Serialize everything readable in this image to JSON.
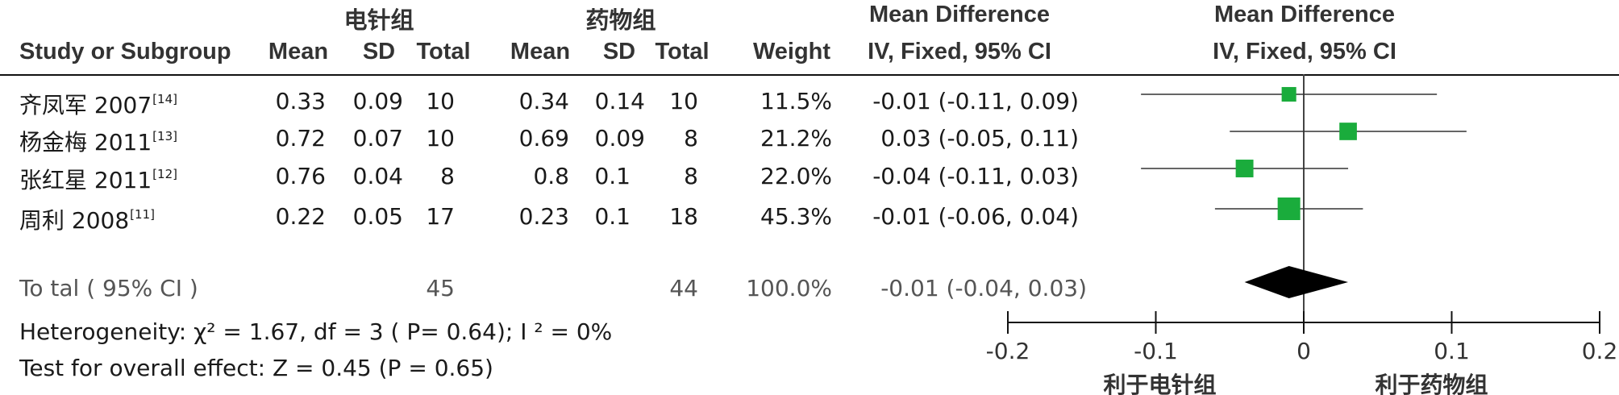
{
  "groups": {
    "experimental": "电针组",
    "control": "药物组"
  },
  "headers": {
    "study": "Study or Subgroup",
    "mean": "Mean",
    "sd": "SD",
    "total": "Total",
    "weight": "Weight",
    "md_title": "Mean Difference",
    "md_method": "IV, Fixed, 95% CI"
  },
  "studies": [
    {
      "name": "齐凤军 2007",
      "ref": "[14]",
      "e_mean": "0.33",
      "e_sd": "0.09",
      "e_total": "10",
      "c_mean": "0.34",
      "c_sd": "0.14",
      "c_total": "10",
      "weight": "11.5%",
      "ci_text": "-0.01 (-0.11, 0.09)"
    },
    {
      "name": "杨金梅 2011",
      "ref": "[13]",
      "e_mean": "0.72",
      "e_sd": "0.07",
      "e_total": "10",
      "c_mean": "0.69",
      "c_sd": "0.09",
      "c_total": "8",
      "weight": "21.2%",
      "ci_text": "0.03 (-0.05, 0.11)"
    },
    {
      "name": "张红星 2011",
      "ref": "[12]",
      "e_mean": "0.76",
      "e_sd": "0.04",
      "e_total": "8",
      "c_mean": "0.8",
      "c_sd": "0.1",
      "c_total": "8",
      "weight": "22.0%",
      "ci_text": "-0.04 (-0.11, 0.03)"
    },
    {
      "name": "周利 2008",
      "ref": "[11]",
      "e_mean": "0.22",
      "e_sd": "0.05",
      "e_total": "17",
      "c_mean": "0.23",
      "c_sd": "0.1",
      "c_total": "18",
      "weight": "45.3%",
      "ci_text": "-0.01 (-0.06, 0.04)"
    }
  ],
  "total": {
    "label": "To tal ( 95% CI )",
    "e_total": "45",
    "c_total": "44",
    "weight": "100.0%",
    "ci_text": "-0.01 (-0.04, 0.03)"
  },
  "heterogeneity": "Heterogeneity:  χ² = 1.67, df = 3 (  P= 0.64); I ² = 0%",
  "overall_effect": "Test for overall effect: Z = 0.45 (P = 0.65)",
  "colors": {
    "marker": "#1aac3c",
    "diamond": "#000000",
    "line": "#333333"
  },
  "chart_data": {
    "type": "forest",
    "xlim": [
      -0.2,
      0.2
    ],
    "xticks": [
      "-0.2",
      "-0.1",
      "0",
      "0.1",
      "0.2"
    ],
    "favours_left": "利于电针组",
    "favours_right": "利于药物组",
    "points": [
      {
        "study": "齐凤军 2007",
        "md": -0.01,
        "lower": -0.11,
        "upper": 0.09,
        "weight": 11.5
      },
      {
        "study": "杨金梅 2011",
        "md": 0.03,
        "lower": -0.05,
        "upper": 0.11,
        "weight": 21.2
      },
      {
        "study": "张红星 2011",
        "md": -0.04,
        "lower": -0.11,
        "upper": 0.03,
        "weight": 22.0
      },
      {
        "study": "周利 2008",
        "md": -0.01,
        "lower": -0.06,
        "upper": 0.04,
        "weight": 45.3
      }
    ],
    "pooled": {
      "md": -0.01,
      "lower": -0.04,
      "upper": 0.03
    }
  }
}
